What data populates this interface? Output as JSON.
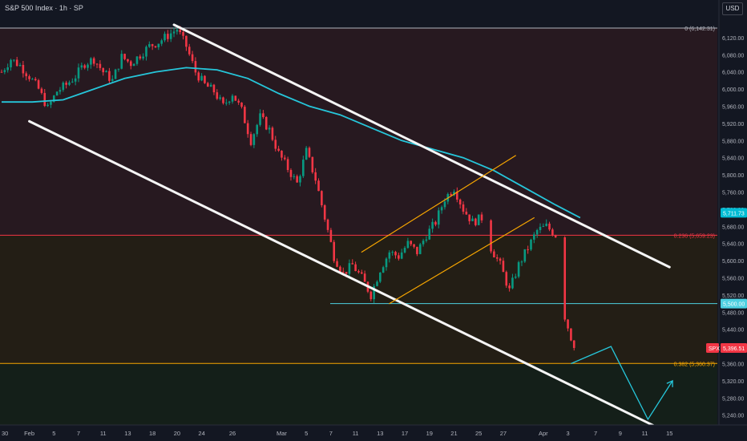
{
  "header": {
    "title": "S&P 500 Index · 1h · SP",
    "currency": "USD"
  },
  "chart_data": {
    "type": "line",
    "title": "S&P 500 Index · 1h · SP",
    "xlabel": "",
    "ylabel": "",
    "ylim": [
      5215,
      6175
    ],
    "y_ticks": [
      5240,
      5280,
      5320,
      5360,
      5400,
      5440,
      5480,
      5520,
      5560,
      5600,
      5640,
      5680,
      5720,
      5760,
      5800,
      5840,
      5880,
      5920,
      5960,
      6000,
      6040,
      6080,
      6120,
      6160
    ],
    "y_tick_labels": [
      "5,240.00",
      "5,280.00",
      "5,320.00",
      "5,360.00",
      "5,400.00",
      "5,440.00",
      "5,480.00",
      "5,520.00",
      "5,560.00",
      "5,600.00",
      "5,640.00",
      "5,680.00",
      "5,720.00",
      "5,760.00",
      "5,800.00",
      "5,840.00",
      "5,880.00",
      "5,920.00",
      "5,960.00",
      "6,000.00",
      "6,040.00",
      "6,080.00",
      "6,120.00",
      "6,160.00"
    ],
    "x_tick_labels": [
      "30",
      "Feb",
      "5",
      "7",
      "11",
      "13",
      "18",
      "20",
      "24",
      "26",
      "Mar",
      "5",
      "7",
      "11",
      "13",
      "17",
      "19",
      "21",
      "25",
      "27",
      "Apr",
      "3",
      "7",
      "9",
      "11",
      "15"
    ],
    "x_tick_index": [
      0,
      9,
      17,
      25,
      33,
      41,
      49,
      57,
      65,
      75,
      91,
      99,
      107,
      115,
      123,
      131,
      139,
      147,
      155,
      163,
      176,
      184,
      193,
      201,
      209,
      217
    ],
    "price": {
      "name": "SPX",
      "index": [
        0,
        3,
        6,
        9,
        12,
        15,
        18,
        21,
        24,
        27,
        30,
        33,
        36,
        39,
        42,
        45,
        48,
        51,
        54,
        57,
        60,
        63,
        66,
        69,
        72,
        75,
        78,
        81,
        84,
        87,
        90,
        93,
        96,
        99,
        102,
        105,
        108,
        111,
        114,
        117,
        120,
        123,
        126,
        129,
        132,
        135,
        138,
        141,
        144,
        147,
        150,
        153,
        156,
        159,
        162,
        165,
        168,
        171,
        174,
        177,
        180,
        183,
        186
      ],
      "values": [
        6040,
        6070,
        6055,
        6030,
        6000,
        5955,
        5995,
        6010,
        6030,
        6060,
        6070,
        6040,
        6020,
        6075,
        6060,
        6080,
        6100,
        6110,
        6125,
        6140,
        6100,
        6040,
        6010,
        5995,
        5960,
        5990,
        5950,
        5880,
        5935,
        5905,
        5850,
        5815,
        5780,
        5855,
        5790,
        5700,
        5610,
        5570,
        5590,
        5560,
        5520,
        5580,
        5620,
        5610,
        5640,
        5620,
        5660,
        5690,
        5745,
        5770,
        5720,
        5690,
        5700,
        5630,
        5590,
        5530,
        5590,
        5630,
        5670,
        5680,
        5660,
        5470,
        5396.51
      ]
    },
    "ma": {
      "name": "MA",
      "index": [
        0,
        10,
        20,
        30,
        40,
        50,
        60,
        70,
        80,
        90,
        100,
        110,
        120,
        130,
        140,
        150,
        160,
        170,
        180,
        188
      ],
      "values": [
        5970,
        5970,
        5975,
        6000,
        6025,
        6040,
        6050,
        6045,
        6025,
        5990,
        5960,
        5940,
        5910,
        5880,
        5860,
        5840,
        5810,
        5770,
        5730,
        5700
      ]
    },
    "horizontal_levels": [
      {
        "label": "0 (6,142.31)",
        "value": 6142.31,
        "color": "#b2b5be"
      },
      {
        "label": "0.236 (5,659.23)",
        "value": 5659.23,
        "color": "#f23645"
      },
      {
        "label": "0.382 (5,360.37)",
        "value": 5360.37,
        "color": "#f7a600"
      }
    ],
    "support_level": {
      "label": "5,500.00",
      "value": 5500,
      "color": "#4dd0e1"
    },
    "price_labels": [
      {
        "label": "5,711.73",
        "value": 5711.73,
        "color": "#00bcd4"
      },
      {
        "label": "SPX",
        "value": 5396.51,
        "color": "#f23645"
      },
      {
        "label": "5,396.51",
        "value": 5396.51,
        "color": "#f23645"
      }
    ],
    "channel_upper": {
      "from": [
        56,
        6150
      ],
      "to": [
        217,
        5585
      ]
    },
    "channel_lower": {
      "from": [
        9,
        5925
      ],
      "to": [
        212,
        5215
      ]
    },
    "rising_channel_upper": {
      "from": [
        117,
        5620
      ],
      "to": [
        167,
        5845
      ]
    },
    "rising_channel_lower": {
      "from": [
        126,
        5500
      ],
      "to": [
        173,
        5700
      ]
    },
    "projection": [
      [
        185,
        5360
      ],
      [
        198,
        5400
      ],
      [
        210,
        5230
      ],
      [
        218,
        5320
      ]
    ],
    "grid": false,
    "legend_position": "top-left"
  },
  "colors": {
    "background": "#131722",
    "zone_top": "#2a1a20",
    "zone_mid": "#261f14",
    "zone_bottom": "#152018",
    "bullish": "#089981",
    "bearish": "#f23645",
    "axis_text": "#b2b5be",
    "channel": "#f5f5f5",
    "rising_channel": "#f7a600",
    "ma": "#26c6da"
  }
}
